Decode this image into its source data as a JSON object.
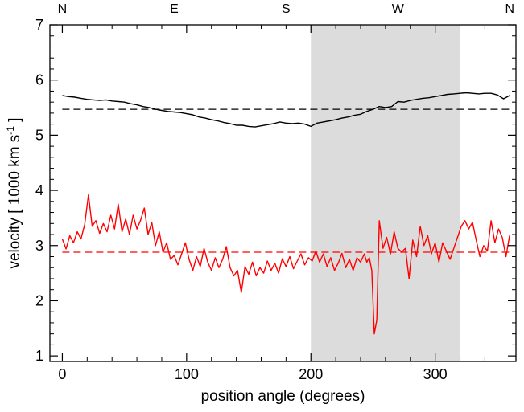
{
  "chart_data": {
    "type": "line",
    "title": "",
    "xlabel": "position angle (degrees)",
    "ylabel": {
      "prefix": "velocity [ 1000 km s",
      "superscript": "-1",
      "suffix": " ]"
    },
    "xlim": [
      -10,
      365
    ],
    "ylim": [
      0.9,
      7.0
    ],
    "xticks": [
      0,
      100,
      200,
      300
    ],
    "yticks": [
      1,
      2,
      3,
      4,
      5,
      6,
      7
    ],
    "top_axis_labels": [
      {
        "x": 0,
        "label": "N"
      },
      {
        "x": 90,
        "label": "E"
      },
      {
        "x": 180,
        "label": "S"
      },
      {
        "x": 270,
        "label": "W"
      },
      {
        "x": 360,
        "label": "N"
      }
    ],
    "shaded_region": {
      "x": [
        200,
        320
      ],
      "color": "#dcdcdc"
    },
    "grid": false,
    "legend": "none",
    "series": [
      {
        "color": "#000000",
        "style": "solid",
        "x": [
          0,
          5,
          10,
          15,
          20,
          25,
          30,
          35,
          40,
          45,
          50,
          55,
          60,
          65,
          70,
          75,
          80,
          85,
          90,
          95,
          100,
          105,
          110,
          115,
          120,
          125,
          130,
          135,
          140,
          145,
          150,
          155,
          160,
          165,
          170,
          175,
          180,
          185,
          190,
          195,
          200,
          205,
          210,
          215,
          220,
          225,
          230,
          235,
          240,
          245,
          250,
          255,
          260,
          265,
          270,
          275,
          280,
          285,
          290,
          295,
          300,
          305,
          310,
          315,
          320,
          325,
          330,
          335,
          340,
          345,
          350,
          355,
          360
        ],
        "y": [
          5.72,
          5.7,
          5.69,
          5.67,
          5.65,
          5.64,
          5.63,
          5.64,
          5.62,
          5.61,
          5.6,
          5.57,
          5.55,
          5.52,
          5.5,
          5.47,
          5.45,
          5.43,
          5.42,
          5.41,
          5.39,
          5.37,
          5.33,
          5.31,
          5.28,
          5.26,
          5.23,
          5.21,
          5.18,
          5.18,
          5.16,
          5.15,
          5.17,
          5.19,
          5.21,
          5.24,
          5.22,
          5.21,
          5.22,
          5.2,
          5.16,
          5.22,
          5.24,
          5.26,
          5.28,
          5.31,
          5.33,
          5.36,
          5.38,
          5.43,
          5.47,
          5.52,
          5.5,
          5.52,
          5.61,
          5.6,
          5.63,
          5.65,
          5.67,
          5.68,
          5.7,
          5.72,
          5.74,
          5.75,
          5.76,
          5.77,
          5.76,
          5.75,
          5.76,
          5.76,
          5.73,
          5.66,
          5.72
        ]
      },
      {
        "color": "#000000",
        "style": "dashed",
        "x": [
          0,
          360
        ],
        "y": [
          5.47,
          5.47
        ]
      },
      {
        "color": "#ff0000",
        "style": "solid",
        "x": [
          0,
          3,
          6,
          9,
          12,
          15,
          18,
          21,
          24,
          27,
          30,
          33,
          36,
          39,
          42,
          45,
          48,
          51,
          54,
          57,
          60,
          63,
          66,
          69,
          72,
          75,
          78,
          81,
          84,
          87,
          90,
          93,
          96,
          99,
          102,
          105,
          108,
          111,
          114,
          117,
          120,
          123,
          126,
          129,
          132,
          135,
          138,
          141,
          144,
          147,
          150,
          153,
          156,
          159,
          162,
          165,
          168,
          171,
          174,
          177,
          180,
          183,
          186,
          189,
          192,
          195,
          198,
          201,
          204,
          207,
          210,
          213,
          216,
          219,
          222,
          225,
          228,
          231,
          234,
          237,
          240,
          243,
          245,
          247,
          249,
          251,
          253,
          255,
          258,
          261,
          264,
          267,
          270,
          273,
          276,
          279,
          282,
          285,
          288,
          291,
          294,
          297,
          300,
          303,
          306,
          309,
          312,
          315,
          318,
          321,
          324,
          327,
          330,
          333,
          336,
          339,
          342,
          345,
          348,
          351,
          354,
          357,
          360
        ],
        "y": [
          3.12,
          2.94,
          3.18,
          3.05,
          3.25,
          3.12,
          3.38,
          3.92,
          3.35,
          3.45,
          3.22,
          3.4,
          3.25,
          3.55,
          3.3,
          3.75,
          3.25,
          3.48,
          3.2,
          3.55,
          3.3,
          3.46,
          3.68,
          3.2,
          3.42,
          3.0,
          3.25,
          2.88,
          3.05,
          2.75,
          2.82,
          2.65,
          2.85,
          3.05,
          2.75,
          2.55,
          2.8,
          2.62,
          2.95,
          2.7,
          2.55,
          2.78,
          2.6,
          2.75,
          2.98,
          2.6,
          2.45,
          2.55,
          2.15,
          2.62,
          2.48,
          2.7,
          2.45,
          2.6,
          2.5,
          2.72,
          2.55,
          2.68,
          2.5,
          2.76,
          2.62,
          2.8,
          2.58,
          2.72,
          2.85,
          2.65,
          2.78,
          2.72,
          2.9,
          2.7,
          2.85,
          2.62,
          2.78,
          2.55,
          2.68,
          2.86,
          2.6,
          2.75,
          2.55,
          2.78,
          2.7,
          2.85,
          2.7,
          2.78,
          2.55,
          1.4,
          1.65,
          3.45,
          2.95,
          3.15,
          2.85,
          3.25,
          2.95,
          2.88,
          2.95,
          2.4,
          3.1,
          2.8,
          3.35,
          3.0,
          3.18,
          2.85,
          3.05,
          2.7,
          3.05,
          2.9,
          2.75,
          2.95,
          3.15,
          3.35,
          3.45,
          3.3,
          3.42,
          3.1,
          2.8,
          3.0,
          2.9,
          3.45,
          3.05,
          3.3,
          3.15,
          2.8,
          3.2
        ]
      },
      {
        "color": "#ff0000",
        "style": "dashed",
        "x": [
          0,
          360
        ],
        "y": [
          2.88,
          2.88
        ]
      }
    ]
  }
}
